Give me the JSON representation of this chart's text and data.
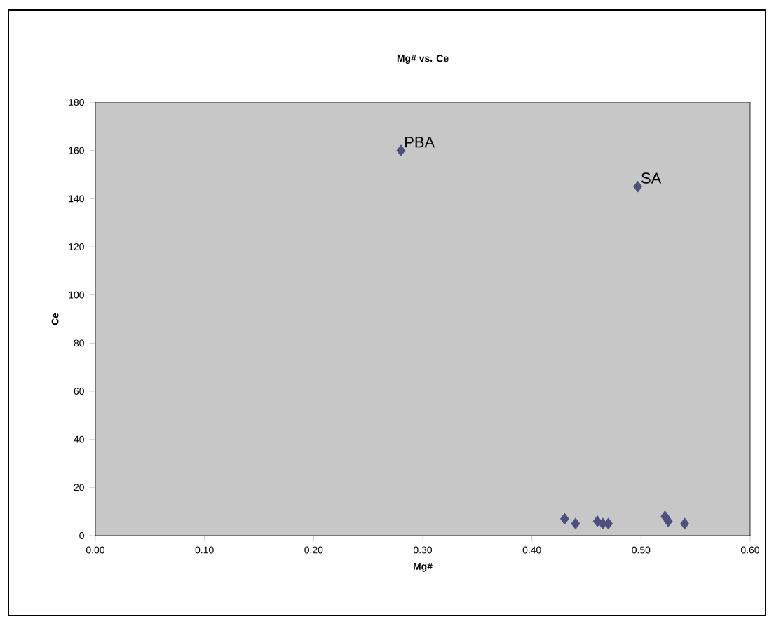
{
  "chart_data": {
    "type": "scatter",
    "title": "Mg# vs. Ce",
    "xlabel": "Mg#",
    "ylabel": "Ce",
    "x": [
      0.28,
      0.497,
      0.43,
      0.44,
      0.46,
      0.465,
      0.47,
      0.522,
      0.525,
      0.54
    ],
    "values": [
      160,
      145,
      7,
      5,
      6,
      5,
      5,
      8,
      6,
      5
    ],
    "color": "#4f4f7f",
    "marker": "diamond",
    "annotations": [
      {
        "text": "PBA",
        "x": 0.28,
        "y": 160
      },
      {
        "text": "SA",
        "x": 0.497,
        "y": 145
      }
    ],
    "xlim": [
      0,
      0.6
    ],
    "xticks": [
      {
        "value": 0,
        "label": "0.00"
      },
      {
        "value": 0.1,
        "label": "0.10"
      },
      {
        "value": 0.2,
        "label": "0.20"
      },
      {
        "value": 0.3,
        "label": "0.30"
      },
      {
        "value": 0.4,
        "label": "0.40"
      },
      {
        "value": 0.5,
        "label": "0.50"
      },
      {
        "value": 0.6,
        "label": "0.60"
      }
    ],
    "ylim": [
      0,
      180
    ],
    "yticks": [
      0,
      20,
      40,
      60,
      80,
      100,
      120,
      140,
      160,
      180
    ]
  }
}
